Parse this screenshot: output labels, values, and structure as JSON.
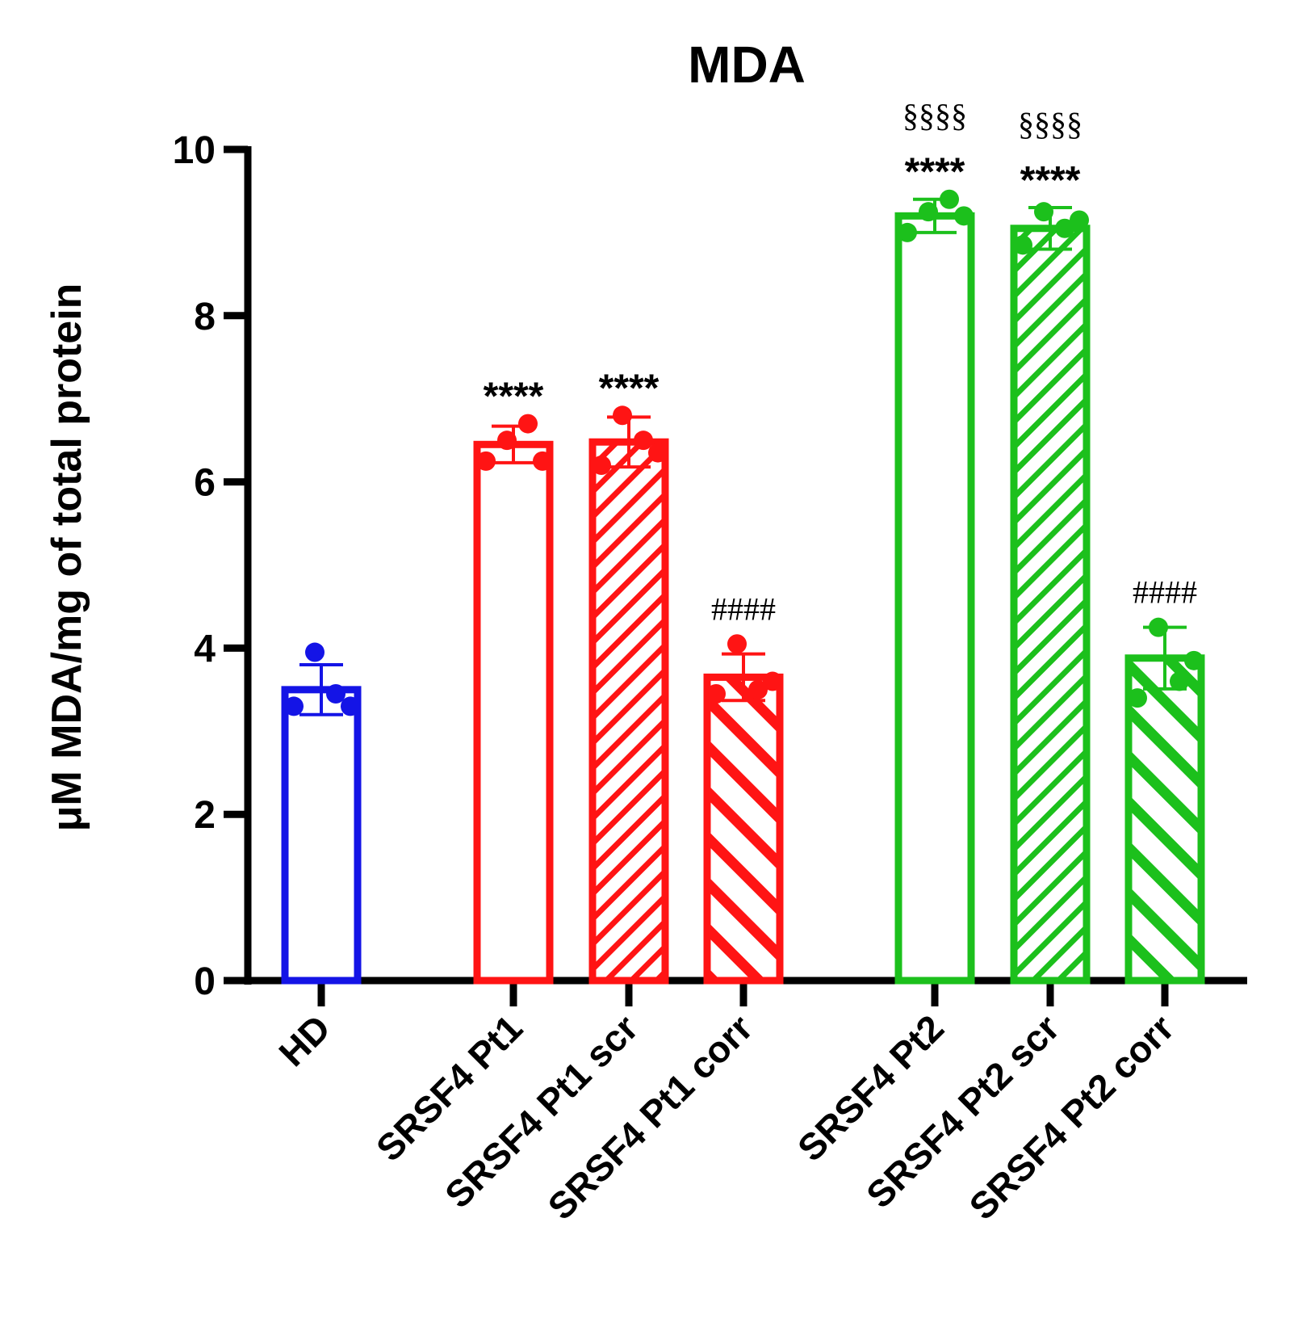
{
  "chart_data": {
    "type": "bar",
    "title": "MDA",
    "ylabel": "μM MDA/mg of total protein",
    "xlabel": "",
    "ylim": [
      0,
      10
    ],
    "yticks": [
      0,
      2,
      4,
      6,
      8,
      10
    ],
    "grid": false,
    "categories": [
      "HD",
      "SRSF4 Pt1",
      "SRSF4 Pt1 scr",
      "SRSF4 Pt1 corr",
      "SRSF4 Pt2",
      "SRSF4 Pt2 scr",
      "SRSF4 Pt2 corr"
    ],
    "values": [
      3.5,
      6.45,
      6.48,
      3.65,
      9.2,
      9.05,
      3.88
    ],
    "errors": [
      0.3,
      0.22,
      0.3,
      0.28,
      0.2,
      0.25,
      0.37
    ],
    "points": [
      [
        3.3,
        3.95,
        3.45,
        3.3
      ],
      [
        6.25,
        6.5,
        6.7,
        6.25
      ],
      [
        6.2,
        6.8,
        6.5,
        6.35
      ],
      [
        3.45,
        4.05,
        3.5,
        3.6
      ],
      [
        9.0,
        9.25,
        9.4,
        9.2
      ],
      [
        8.85,
        9.25,
        9.05,
        9.15
      ],
      [
        3.4,
        4.25,
        3.6,
        3.85
      ]
    ],
    "colors": [
      "#1414e6",
      "#ff1414",
      "#ff1414",
      "#ff1414",
      "#1cc01c",
      "#1cc01c",
      "#1cc01c"
    ],
    "patterns": [
      "none",
      "none",
      "fine-diagonal",
      "coarse-diagonal",
      "none",
      "fine-diagonal",
      "coarse-diagonal"
    ],
    "annotations": [
      {
        "category": "SRSF4 Pt1",
        "lines": [
          "****"
        ]
      },
      {
        "category": "SRSF4 Pt1 scr",
        "lines": [
          "****"
        ]
      },
      {
        "category": "SRSF4 Pt1 corr",
        "lines": [
          "####"
        ]
      },
      {
        "category": "SRSF4 Pt2",
        "lines": [
          "§§§§",
          "****"
        ]
      },
      {
        "category": "SRSF4 Pt2 scr",
        "lines": [
          "§§§§",
          "****"
        ]
      },
      {
        "category": "SRSF4 Pt2 corr",
        "lines": [
          "####"
        ]
      }
    ]
  }
}
